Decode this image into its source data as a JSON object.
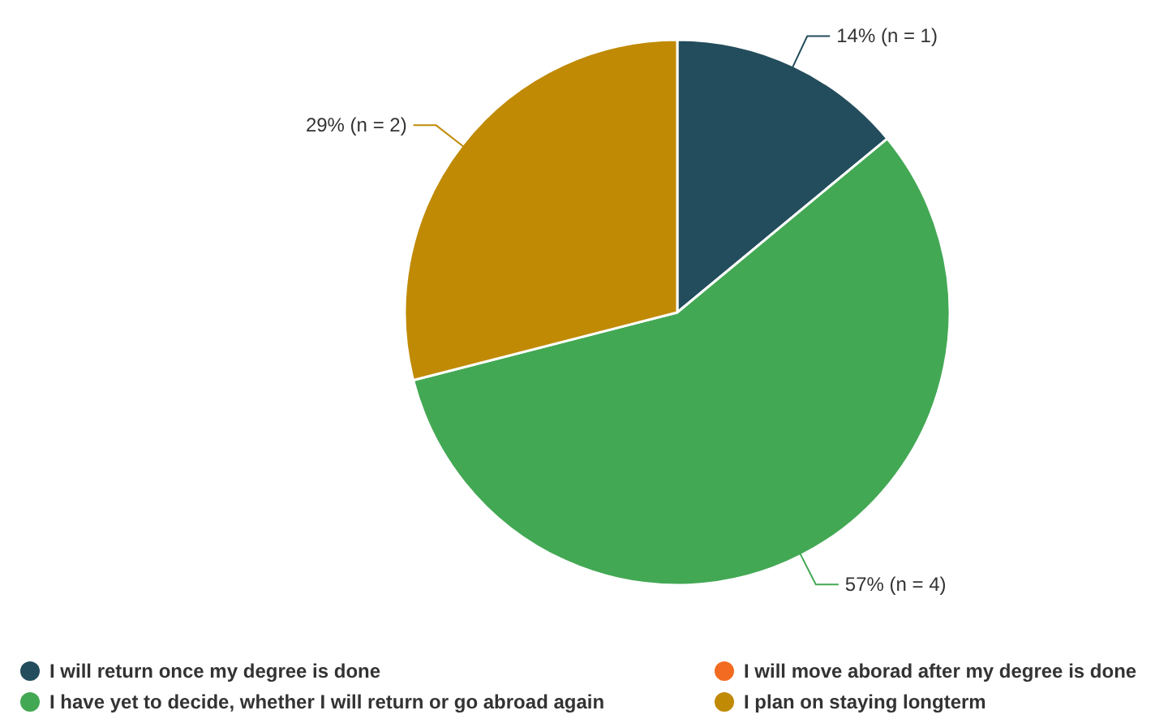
{
  "chart_data": {
    "type": "pie",
    "categories": [
      "I will return once my degree is done",
      "I will move aborad after my degree is done",
      "I have yet to decide, whether I will return or go abroad again",
      "I plan on staying longterm"
    ],
    "values": [
      14,
      0,
      57,
      29
    ],
    "colors": [
      "#234d5c",
      "#f26b21",
      "#43a854",
      "#c08a05"
    ],
    "value_labels": [
      "14% (n = 1)",
      null,
      "57% (n = 4)",
      "29% (n = 2)"
    ],
    "legend": "bottom"
  }
}
